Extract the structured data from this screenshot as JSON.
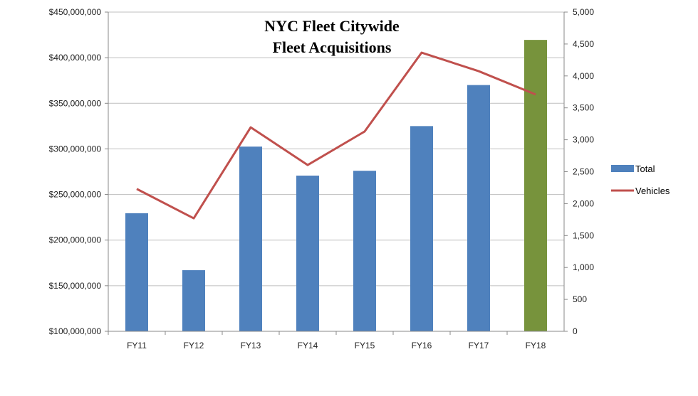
{
  "chart_data": {
    "type": "bar",
    "title": [
      "NYC Fleet Citywide",
      "Fleet Acquisitions"
    ],
    "categories": [
      "FY11",
      "FY12",
      "FY13",
      "FY14",
      "FY15",
      "FY16",
      "FY17",
      "FY18"
    ],
    "series": [
      {
        "name": "Total",
        "type": "bar",
        "axis": "left",
        "values": [
          229500000,
          167000000,
          302500000,
          270700000,
          276000000,
          325000000,
          370000000,
          419500000
        ],
        "color": "#4f81bd",
        "highlight_color": "#77933c",
        "highlight_index": 7
      },
      {
        "name": "Vehicles",
        "type": "line",
        "axis": "right",
        "values": [
          2230,
          1770,
          3195,
          2605,
          3130,
          4365,
          4075,
          3710
        ],
        "color": "#c0504d"
      }
    ],
    "left_axis": {
      "ylim": [
        100000000,
        450000000
      ],
      "ticks": [
        "$100,000,000",
        "$150,000,000",
        "$200,000,000",
        "$250,000,000",
        "$300,000,000",
        "$350,000,000",
        "$400,000,000",
        "$450,000,000"
      ]
    },
    "right_axis": {
      "ylim": [
        0,
        5000
      ],
      "ticks": [
        "0",
        "500",
        "1,000",
        "1,500",
        "2,000",
        "2,500",
        "3,000",
        "3,500",
        "4,000",
        "4,500",
        "5,000"
      ]
    },
    "grid": true,
    "legend_position": "right"
  }
}
